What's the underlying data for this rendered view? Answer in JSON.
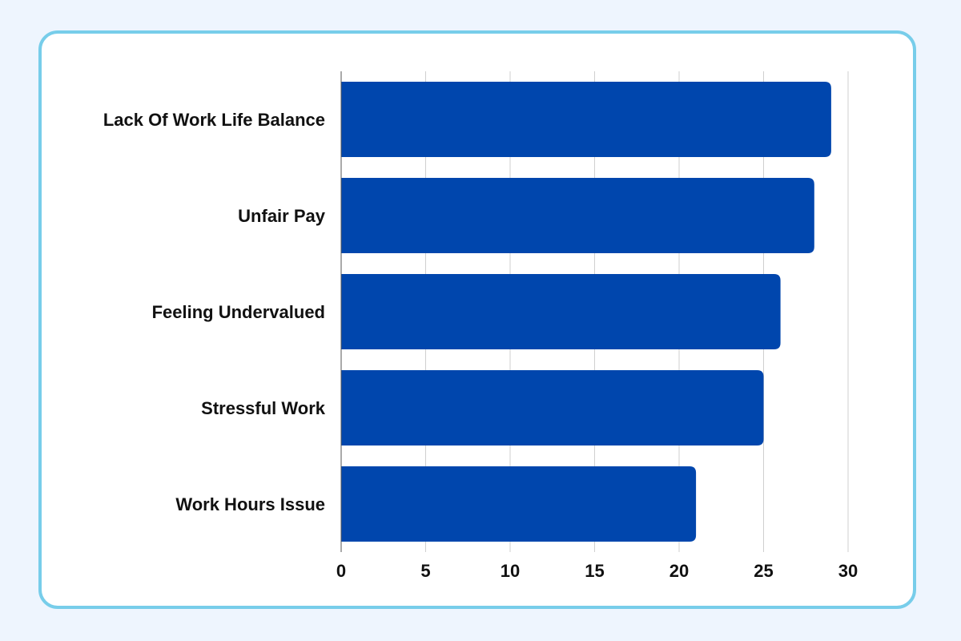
{
  "chart_data": {
    "type": "bar",
    "orientation": "horizontal",
    "categories": [
      "Lack Of Work Life Balance",
      "Unfair Pay",
      "Feeling Undervalued",
      "Stressful Work",
      "Work Hours Issue"
    ],
    "values": [
      29,
      28,
      26,
      25,
      21
    ],
    "xlim": [
      0,
      30
    ],
    "xticks": [
      "0",
      "5",
      "10",
      "15",
      "20",
      "25",
      "30"
    ],
    "grid": true,
    "colors": {
      "bar": "#0046ad",
      "grid": "#cfcfcf",
      "axis": "#555555",
      "card_border": "#77cdea",
      "page_background": "#eef5fe"
    }
  }
}
